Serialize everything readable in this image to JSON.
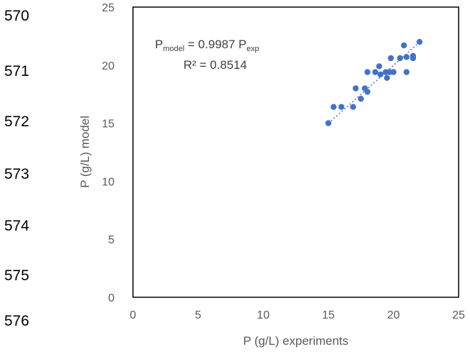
{
  "line_numbers": [
    "570",
    "571",
    "572",
    "573",
    "574",
    "575",
    "576"
  ],
  "chart_data": {
    "type": "scatter",
    "title": "",
    "xlabel": "P (g/L) experiments",
    "ylabel": "P (g/L) model",
    "xlim": [
      0,
      25
    ],
    "ylim": [
      0,
      25
    ],
    "xticks": [
      "0",
      "5",
      "10",
      "15",
      "20",
      "25"
    ],
    "yticks": [
      "0",
      "5",
      "10",
      "15",
      "20",
      "25"
    ],
    "grid": false,
    "legend": "none",
    "marker_color": "#4472C4",
    "trendline": {
      "style": "dotted",
      "slope": 0.9987,
      "intercept": 0
    },
    "annotation": {
      "eq_lhs": "P",
      "eq_lhs_sub": "model",
      "eq_mid": " = 0.9987 P",
      "eq_rhs_sub": "exp",
      "r2": "R² = 0.8514"
    },
    "points": [
      {
        "x": 15.0,
        "y": 15.0
      },
      {
        "x": 15.4,
        "y": 16.4
      },
      {
        "x": 16.0,
        "y": 16.4
      },
      {
        "x": 16.9,
        "y": 16.4
      },
      {
        "x": 17.1,
        "y": 18.0
      },
      {
        "x": 17.5,
        "y": 17.1
      },
      {
        "x": 17.8,
        "y": 18.0
      },
      {
        "x": 18.0,
        "y": 17.7
      },
      {
        "x": 18.0,
        "y": 19.4
      },
      {
        "x": 18.6,
        "y": 19.4
      },
      {
        "x": 18.9,
        "y": 19.9
      },
      {
        "x": 19.0,
        "y": 19.2
      },
      {
        "x": 19.4,
        "y": 19.4
      },
      {
        "x": 19.5,
        "y": 18.9
      },
      {
        "x": 19.7,
        "y": 19.4
      },
      {
        "x": 19.8,
        "y": 20.6
      },
      {
        "x": 20.0,
        "y": 19.4
      },
      {
        "x": 20.5,
        "y": 20.6
      },
      {
        "x": 20.8,
        "y": 21.7
      },
      {
        "x": 21.0,
        "y": 20.7
      },
      {
        "x": 21.0,
        "y": 19.4
      },
      {
        "x": 21.5,
        "y": 20.6
      },
      {
        "x": 21.5,
        "y": 20.8
      },
      {
        "x": 22.0,
        "y": 22.0
      }
    ]
  }
}
